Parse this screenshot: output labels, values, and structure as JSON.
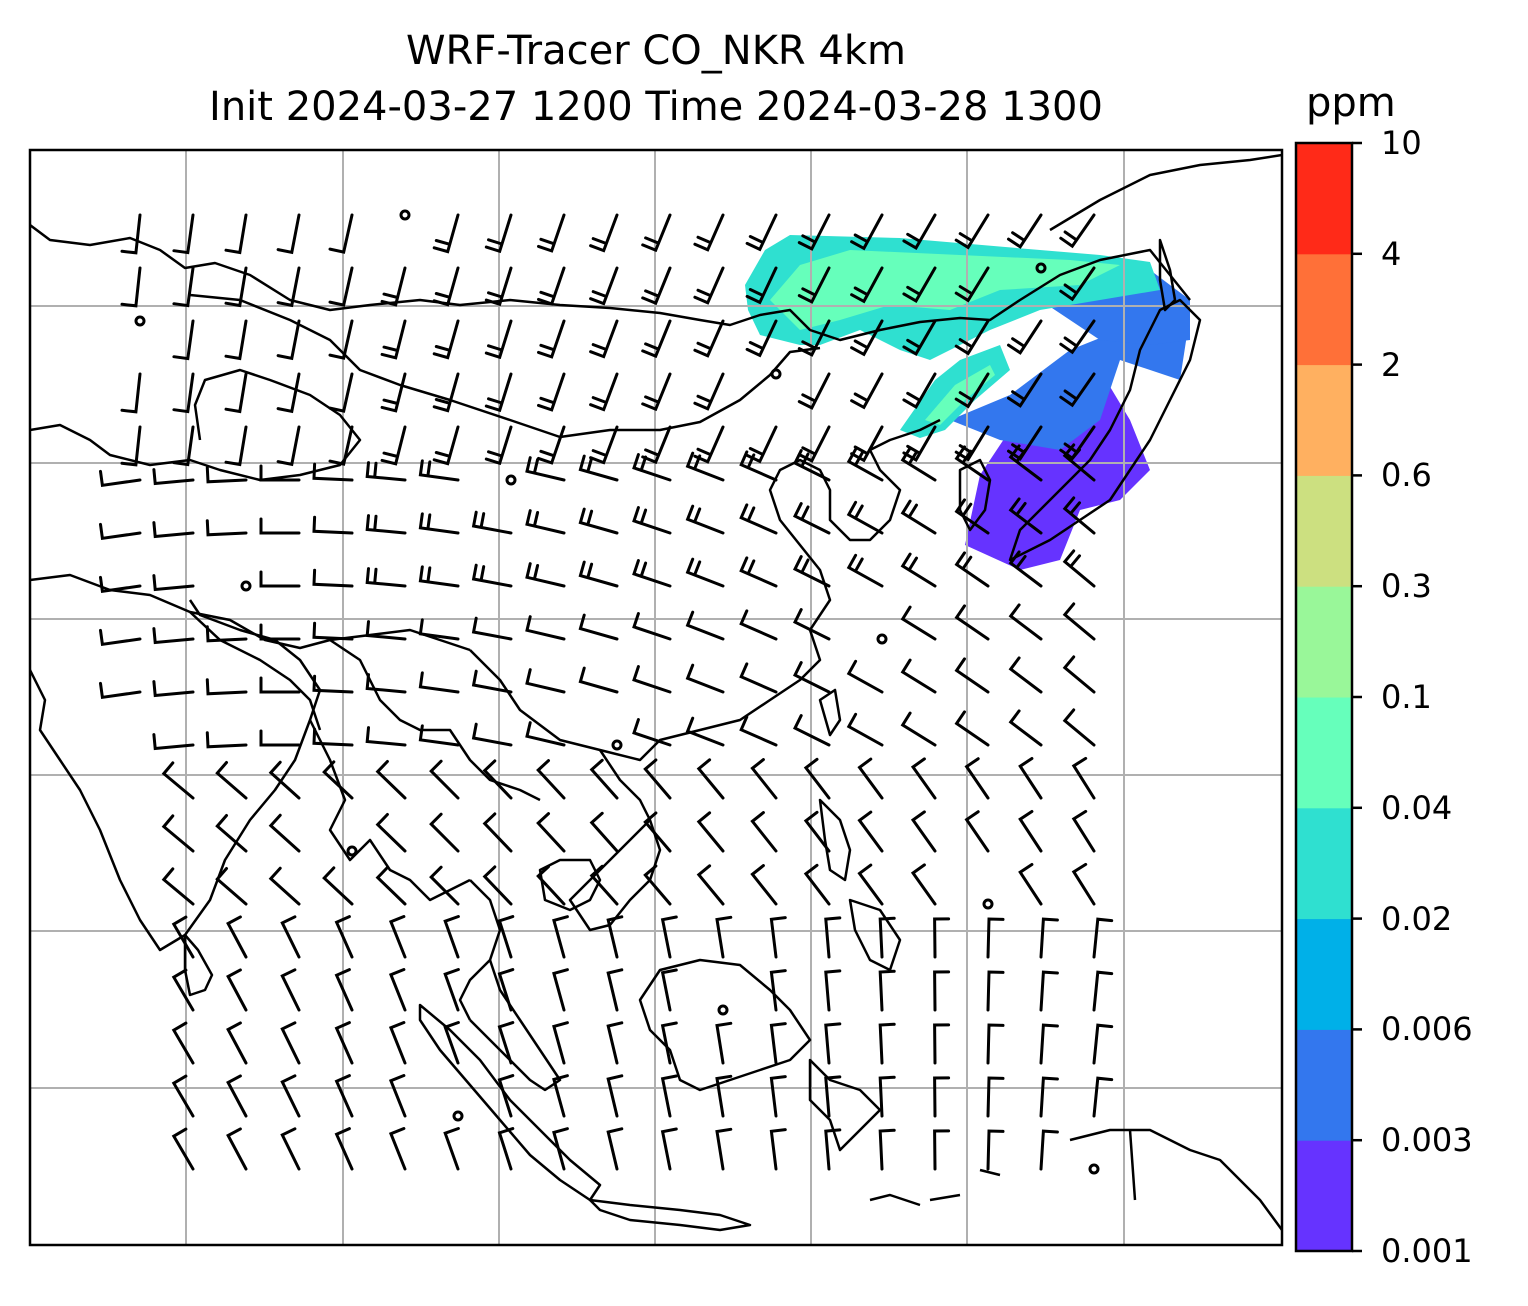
{
  "title": {
    "line1": "WRF-Tracer CO_NKR 4km",
    "line2": "Init 2024-03-27 1200 Time 2024-03-28 1300"
  },
  "colorbar": {
    "unit": "ppm",
    "levels": [
      "0.001",
      "0.003",
      "0.006",
      "0.02",
      "0.04",
      "0.1",
      "0.3",
      "0.6",
      "2",
      "4",
      "10"
    ],
    "colors": [
      "#6633ff",
      "#3377ee",
      "#00b0e8",
      "#2fe0d0",
      "#66ffbb",
      "#99f799",
      "#cce080",
      "#ffb060",
      "#ff7038",
      "#ff2a18"
    ]
  },
  "map": {
    "gridlines": true,
    "features": [
      "coastlines",
      "country borders",
      "wind barbs",
      "CO tracer plume"
    ],
    "plume_levels_shown": [
      "0.001",
      "0.003",
      "0.006",
      "0.02",
      "0.04"
    ]
  }
}
